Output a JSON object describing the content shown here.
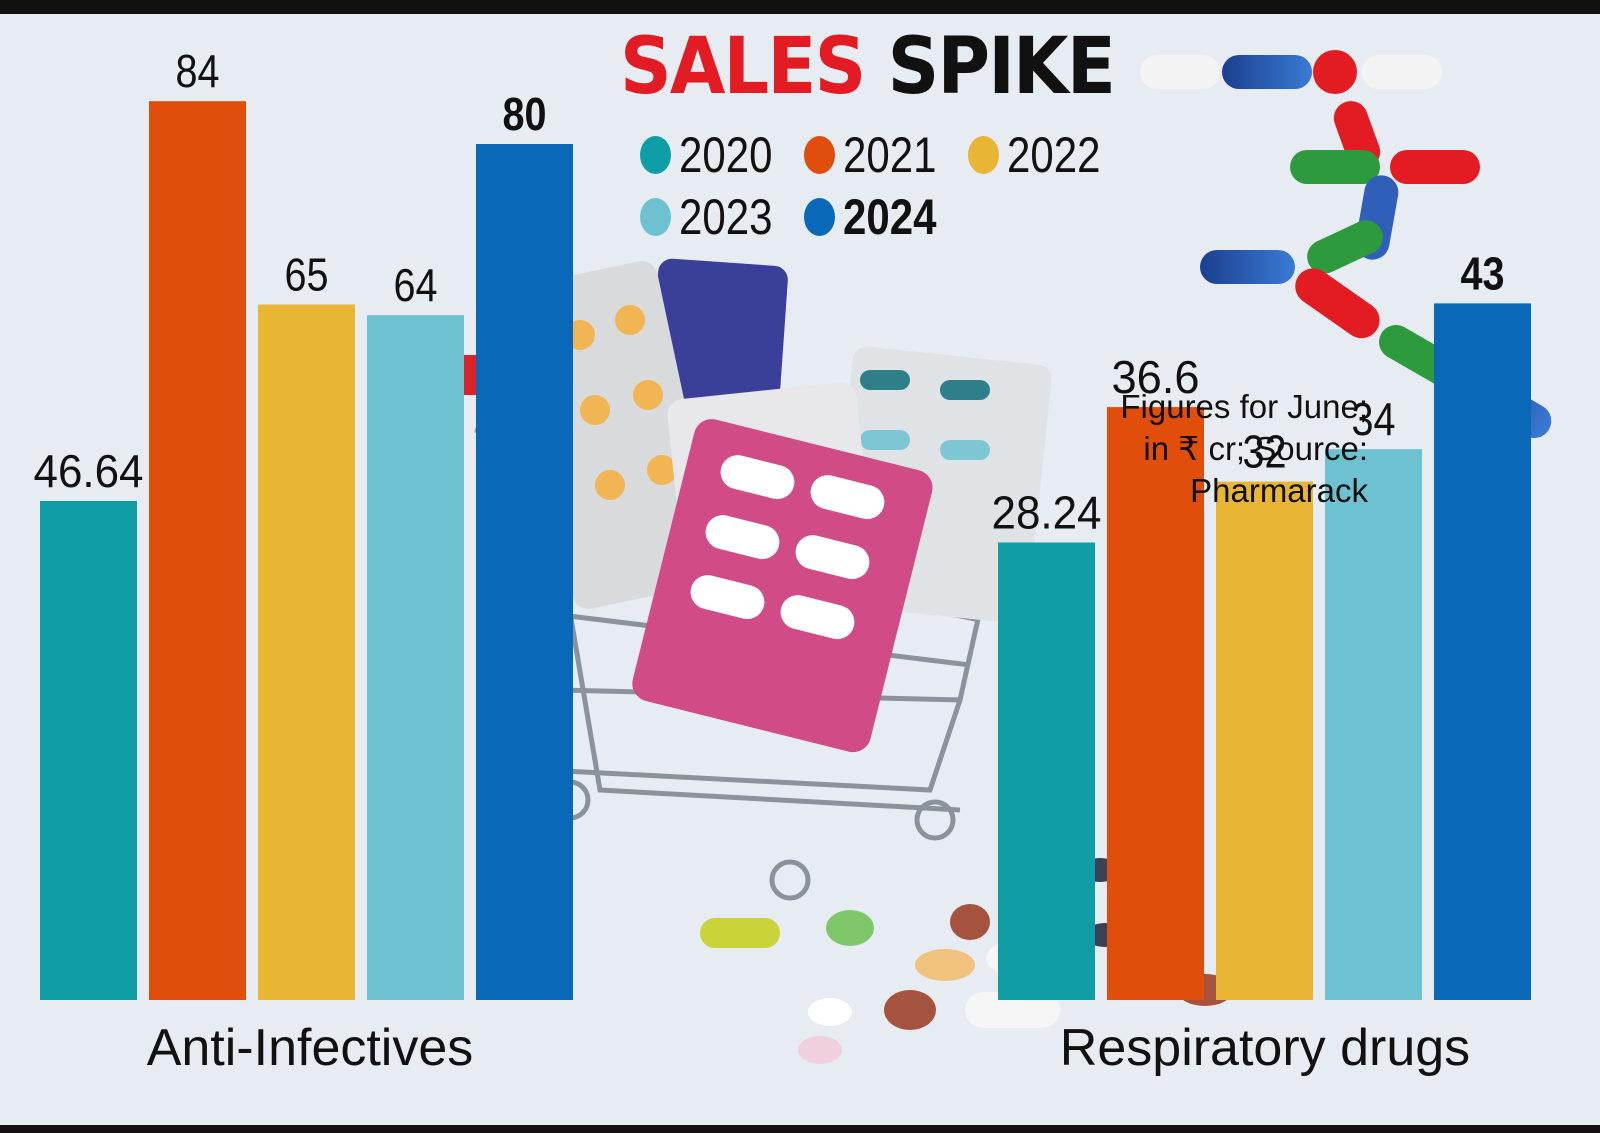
{
  "title": {
    "part1": "SALES",
    "part2": "SPIKE"
  },
  "note": "Figures for June;\nin ₹ cr; Source:\nPharmarack",
  "chart_data": {
    "type": "bar",
    "title": "SALES SPIKE",
    "unit": "₹ cr",
    "categories": [
      "Anti-Infectives",
      "Respiratory drugs"
    ],
    "series": [
      {
        "name": "2020",
        "color": "#0f9ea6",
        "values": [
          46.64,
          28.24
        ],
        "labels": [
          "46.64",
          "28.24"
        ]
      },
      {
        "name": "2021",
        "color": "#e14d0a",
        "values": [
          84,
          36.6
        ],
        "labels": [
          "84",
          "36.6"
        ]
      },
      {
        "name": "2022",
        "color": "#e8b534",
        "values": [
          65,
          32
        ],
        "labels": [
          "65",
          "32"
        ]
      },
      {
        "name": "2023",
        "color": "#6ec1d1",
        "values": [
          64,
          34
        ],
        "labels": [
          "64",
          "34"
        ]
      },
      {
        "name": "2024",
        "color": "#0a68b8",
        "values": [
          80,
          43
        ],
        "labels": [
          "80",
          "43"
        ],
        "bold": true
      }
    ]
  }
}
